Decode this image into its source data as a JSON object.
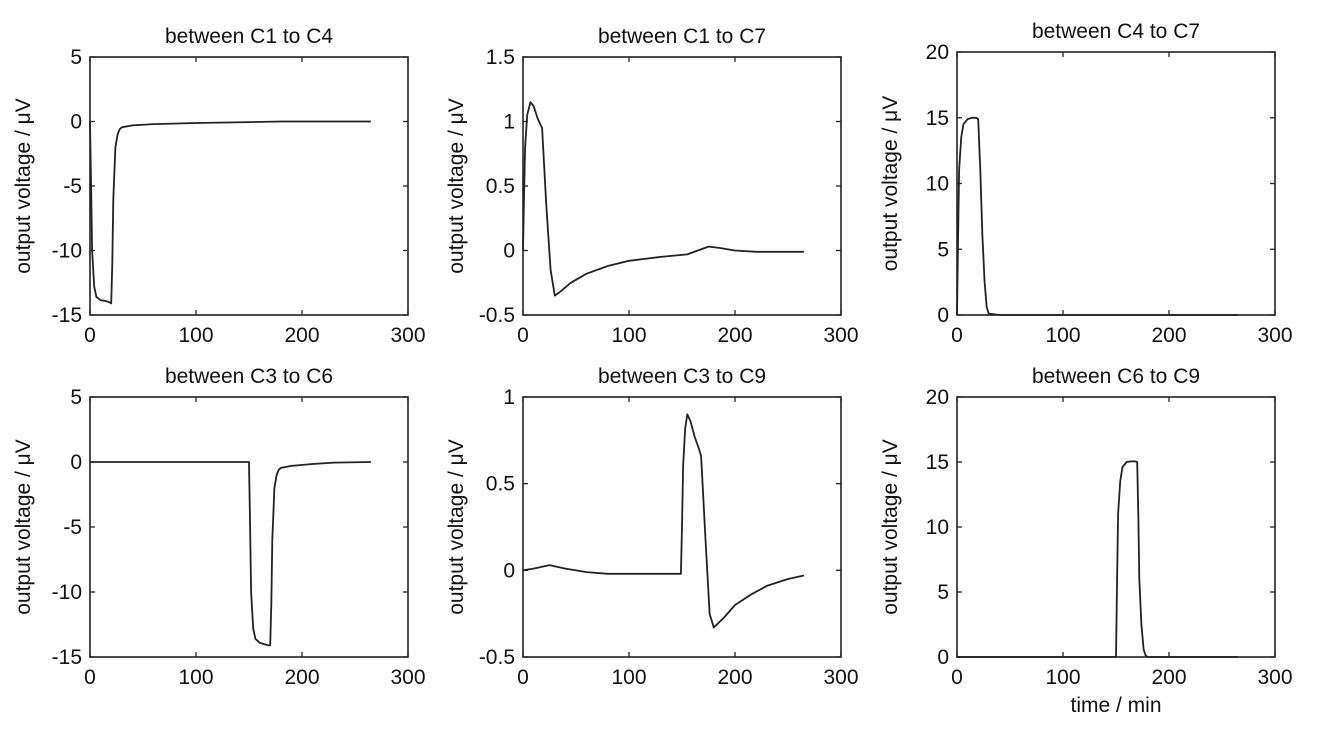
{
  "chart_data": [
    {
      "type": "line",
      "title": "between C1 to C4",
      "ylabel": "output voltage / μV",
      "xlabel": "",
      "xlim": [
        0,
        300
      ],
      "ylim": [
        -15,
        5
      ],
      "xticks": [
        "0",
        "100",
        "200",
        "300"
      ],
      "yticks": [
        "5",
        "0",
        "-5",
        "-10",
        "-15"
      ],
      "series": [
        {
          "x": [
            0,
            1,
            2,
            4,
            6,
            10,
            14,
            18,
            20,
            21,
            22,
            24,
            26,
            28,
            30,
            40,
            60,
            100,
            150,
            180,
            220,
            265
          ],
          "y": [
            0,
            -5,
            -10,
            -12.8,
            -13.6,
            -13.85,
            -13.9,
            -14.0,
            -14.1,
            -11,
            -6,
            -2,
            -1.0,
            -0.6,
            -0.45,
            -0.3,
            -0.2,
            -0.12,
            -0.05,
            0,
            0,
            0
          ]
        }
      ]
    },
    {
      "type": "line",
      "title": "between C1 to C7",
      "ylabel": "output voltage / μV",
      "xlabel": "",
      "xlim": [
        0,
        300
      ],
      "ylim": [
        -0.5,
        1.5
      ],
      "xticks": [
        "0",
        "100",
        "200",
        "300"
      ],
      "yticks": [
        "1.5",
        "1",
        "0.5",
        "0",
        "-0.5"
      ],
      "series": [
        {
          "x": [
            0,
            1,
            2,
            4,
            7,
            10,
            14,
            18,
            22,
            26,
            30,
            35,
            45,
            60,
            80,
            100,
            130,
            155,
            165,
            175,
            185,
            200,
            220,
            265
          ],
          "y": [
            0,
            0.45,
            0.8,
            1.05,
            1.15,
            1.12,
            1.02,
            0.95,
            0.35,
            -0.15,
            -0.35,
            -0.32,
            -0.25,
            -0.18,
            -0.12,
            -0.08,
            -0.05,
            -0.03,
            0.0,
            0.03,
            0.02,
            0.0,
            -0.01,
            -0.01
          ]
        }
      ]
    },
    {
      "type": "line",
      "title": "between C4 to C7",
      "ylabel": "output voltage / μV",
      "xlabel": "",
      "xlim": [
        0,
        300
      ],
      "ylim": [
        0,
        20
      ],
      "xticks": [
        "0",
        "100",
        "200",
        "300"
      ],
      "yticks": [
        "20",
        "15",
        "10",
        "5",
        "0"
      ],
      "series": [
        {
          "x": [
            0,
            1,
            2,
            4,
            6,
            10,
            14,
            18,
            20,
            22,
            24,
            26,
            28,
            30,
            40,
            100,
            200,
            265
          ],
          "y": [
            0,
            6,
            11,
            13.5,
            14.5,
            14.9,
            15.0,
            15.0,
            14.9,
            11,
            6,
            2.5,
            0.6,
            0.1,
            0,
            0,
            0,
            0
          ]
        }
      ]
    },
    {
      "type": "line",
      "title": "between C3 to C6",
      "ylabel": "output voltage / μV",
      "xlabel": "",
      "xlim": [
        0,
        300
      ],
      "ylim": [
        -15,
        5
      ],
      "xticks": [
        "0",
        "100",
        "200",
        "300"
      ],
      "yticks": [
        "5",
        "0",
        "-5",
        "-10",
        "-15"
      ],
      "series": [
        {
          "x": [
            0,
            100,
            150,
            151,
            152,
            154,
            156,
            160,
            164,
            168,
            170,
            171,
            172,
            174,
            176,
            178,
            180,
            190,
            210,
            230,
            265
          ],
          "y": [
            0,
            0,
            0,
            -5,
            -10,
            -12.8,
            -13.6,
            -13.9,
            -14.0,
            -14.1,
            -14.1,
            -11,
            -6,
            -2,
            -1.0,
            -0.6,
            -0.45,
            -0.3,
            -0.15,
            -0.05,
            0
          ]
        }
      ]
    },
    {
      "type": "line",
      "title": "between C3 to C9",
      "ylabel": "output voltage / μV",
      "xlabel": "",
      "xlim": [
        0,
        300
      ],
      "ylim": [
        -0.5,
        1
      ],
      "xticks": [
        "0",
        "100",
        "200",
        "300"
      ],
      "yticks": [
        "1",
        "0.5",
        "0",
        "-0.5"
      ],
      "series": [
        {
          "x": [
            0,
            10,
            25,
            40,
            60,
            80,
            100,
            130,
            149,
            150,
            151,
            153,
            155,
            158,
            162,
            166,
            168,
            172,
            176,
            180,
            190,
            200,
            215,
            230,
            250,
            265
          ],
          "y": [
            0,
            0.01,
            0.03,
            0.01,
            -0.01,
            -0.02,
            -0.02,
            -0.02,
            -0.02,
            0.25,
            0.6,
            0.82,
            0.9,
            0.86,
            0.77,
            0.7,
            0.66,
            0.2,
            -0.25,
            -0.33,
            -0.27,
            -0.2,
            -0.14,
            -0.09,
            -0.05,
            -0.03
          ]
        }
      ]
    },
    {
      "type": "line",
      "title": "between C6 to C9",
      "ylabel": "output voltage / μV",
      "xlabel": "time / min",
      "xlim": [
        0,
        300
      ],
      "ylim": [
        0,
        20
      ],
      "xticks": [
        "0",
        "100",
        "200",
        "300"
      ],
      "yticks": [
        "20",
        "15",
        "10",
        "5",
        "0"
      ],
      "series": [
        {
          "x": [
            0,
            100,
            150,
            151,
            152,
            154,
            156,
            160,
            164,
            168,
            170,
            171,
            172,
            174,
            176,
            178,
            180,
            200,
            265
          ],
          "y": [
            0,
            0,
            0,
            6,
            11,
            13.5,
            14.6,
            15.0,
            15.05,
            15.05,
            15.0,
            11,
            6,
            2.5,
            0.6,
            0.1,
            0,
            0,
            0
          ]
        }
      ]
    }
  ]
}
